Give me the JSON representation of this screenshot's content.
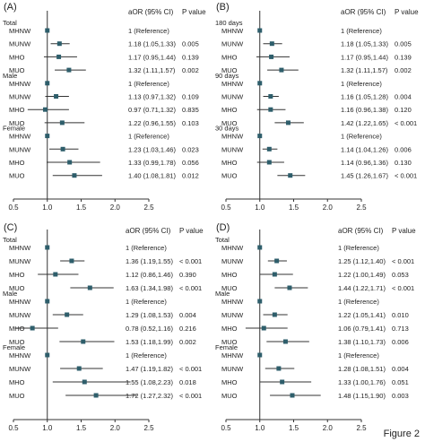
{
  "figure_label": "Figure 2",
  "colors": {
    "marker": "#2e5e6b",
    "axis": "#333333",
    "text": "#222222"
  },
  "chart_data": [
    {
      "type": "forest",
      "panel": "(A)",
      "columns": [
        "aOR (95% CI)",
        "P value"
      ],
      "xlim": [
        0.5,
        2.5
      ],
      "xticks": [
        "0.5",
        "1.0",
        "1.5",
        "2.0",
        "2.5"
      ],
      "reference_line": 1.0,
      "groups": [
        {
          "label": "Total",
          "rows": [
            {
              "label": "MHNW",
              "or": 1,
              "lo": 1,
              "hi": 1,
              "ci_text": "1 (Reference)",
              "p": ""
            },
            {
              "label": "MUNW",
              "or": 1.18,
              "lo": 1.05,
              "hi": 1.33,
              "ci_text": "1.18 (1.05,1.33)",
              "p": "0.005"
            },
            {
              "label": "MHO",
              "or": 1.17,
              "lo": 0.95,
              "hi": 1.44,
              "ci_text": "1.17 (0.95,1.44)",
              "p": "0.139"
            },
            {
              "label": "MUO",
              "or": 1.32,
              "lo": 1.11,
              "hi": 1.57,
              "ci_text": "1.32 (1.11,1.57)",
              "p": "0.002"
            }
          ]
        },
        {
          "label": "Male",
          "rows": [
            {
              "label": "MHNW",
              "or": 1,
              "lo": 1,
              "hi": 1,
              "ci_text": "1 (Reference)",
              "p": ""
            },
            {
              "label": "MUNW",
              "or": 1.13,
              "lo": 0.97,
              "hi": 1.32,
              "ci_text": "1.13 (0.97,1.32)",
              "p": "0.109"
            },
            {
              "label": "MHO",
              "or": 0.97,
              "lo": 0.71,
              "hi": 1.32,
              "ci_text": "0.97 (0.71,1.32)",
              "p": "0.835"
            },
            {
              "label": "MUO",
              "or": 1.22,
              "lo": 0.96,
              "hi": 1.55,
              "ci_text": "1.22 (0.96,1.55)",
              "p": "0.103"
            }
          ]
        },
        {
          "label": "Female",
          "rows": [
            {
              "label": "MHNW",
              "or": 1,
              "lo": 1,
              "hi": 1,
              "ci_text": "1 (Reference)",
              "p": ""
            },
            {
              "label": "MUNW",
              "or": 1.23,
              "lo": 1.03,
              "hi": 1.46,
              "ci_text": "1.23 (1.03,1.46)",
              "p": "0.023"
            },
            {
              "label": "MHO",
              "or": 1.33,
              "lo": 0.99,
              "hi": 1.78,
              "ci_text": "1.33 (0.99,1.78)",
              "p": "0.056"
            },
            {
              "label": "MUO",
              "or": 1.4,
              "lo": 1.08,
              "hi": 1.81,
              "ci_text": "1.40 (1.08,1.81)",
              "p": "0.012"
            }
          ]
        }
      ]
    },
    {
      "type": "forest",
      "panel": "(B)",
      "columns": [
        "aOR (95% CI)",
        "P value"
      ],
      "xlim": [
        0.5,
        2.5
      ],
      "xticks": [
        "0.5",
        "1.0",
        "1.5",
        "2.0",
        "2.5"
      ],
      "reference_line": 1.0,
      "groups": [
        {
          "label": "180 days",
          "rows": [
            {
              "label": "MHNW",
              "or": 1,
              "lo": 1,
              "hi": 1,
              "ci_text": "1 (Reference)",
              "p": ""
            },
            {
              "label": "MUNW",
              "or": 1.18,
              "lo": 1.05,
              "hi": 1.33,
              "ci_text": "1.18 (1.05,1.33)",
              "p": "0.005"
            },
            {
              "label": "MHO",
              "or": 1.17,
              "lo": 0.95,
              "hi": 1.44,
              "ci_text": "1.17 (0.95,1.44)",
              "p": "0.139"
            },
            {
              "label": "MUO",
              "or": 1.32,
              "lo": 1.11,
              "hi": 1.57,
              "ci_text": "1.32 (1.11,1.57)",
              "p": "0.002"
            }
          ]
        },
        {
          "label": "90 days",
          "rows": [
            {
              "label": "MHNW",
              "or": 1,
              "lo": 1,
              "hi": 1,
              "ci_text": "1 (Reference)",
              "p": ""
            },
            {
              "label": "MUNW",
              "or": 1.16,
              "lo": 1.05,
              "hi": 1.28,
              "ci_text": "1.16 (1.05,1.28)",
              "p": "0.004"
            },
            {
              "label": "MHO",
              "or": 1.16,
              "lo": 0.96,
              "hi": 1.38,
              "ci_text": "1.16 (0.96,1.38)",
              "p": "0.120"
            },
            {
              "label": "MUO",
              "or": 1.42,
              "lo": 1.22,
              "hi": 1.65,
              "ci_text": "1.42 (1.22,1.65)",
              "p": "< 0.001"
            }
          ]
        },
        {
          "label": "30 days",
          "rows": [
            {
              "label": "MHNW",
              "or": 1,
              "lo": 1,
              "hi": 1,
              "ci_text": "1 (Reference)",
              "p": ""
            },
            {
              "label": "MUNW",
              "or": 1.14,
              "lo": 1.04,
              "hi": 1.26,
              "ci_text": "1.14 (1.04,1.26)",
              "p": "0.006"
            },
            {
              "label": "MHO",
              "or": 1.14,
              "lo": 0.96,
              "hi": 1.36,
              "ci_text": "1.14 (0.96,1.36)",
              "p": "0.130"
            },
            {
              "label": "MUO",
              "or": 1.45,
              "lo": 1.26,
              "hi": 1.67,
              "ci_text": "1.45 (1.26,1.67)",
              "p": "< 0.001"
            }
          ]
        }
      ]
    },
    {
      "type": "forest",
      "panel": "(C)",
      "columns": [
        "aOR (95% CI)",
        "P value"
      ],
      "xlim": [
        0.5,
        2.5
      ],
      "xticks": [
        "0.5",
        "1.0",
        "1.5",
        "2.0",
        "2.5"
      ],
      "reference_line": 1.0,
      "groups": [
        {
          "label": "Total",
          "rows": [
            {
              "label": "MHNW",
              "or": 1,
              "lo": 1,
              "hi": 1,
              "ci_text": "1 (Reference)",
              "p": ""
            },
            {
              "label": "MUNW",
              "or": 1.36,
              "lo": 1.19,
              "hi": 1.55,
              "ci_text": "1.36 (1.19,1.55)",
              "p": "< 0.001"
            },
            {
              "label": "MHO",
              "or": 1.12,
              "lo": 0.86,
              "hi": 1.46,
              "ci_text": "1.12 (0.86,1.46)",
              "p": "0.390"
            },
            {
              "label": "MUO",
              "or": 1.63,
              "lo": 1.34,
              "hi": 1.98,
              "ci_text": "1.63 (1.34,1.98)",
              "p": "< 0.001"
            }
          ]
        },
        {
          "label": "Male",
          "rows": [
            {
              "label": "MHNW",
              "or": 1,
              "lo": 1,
              "hi": 1,
              "ci_text": "1 (Reference)",
              "p": ""
            },
            {
              "label": "MUNW",
              "or": 1.29,
              "lo": 1.08,
              "hi": 1.53,
              "ci_text": "1.29 (1.08,1.53)",
              "p": "0.004"
            },
            {
              "label": "MHO",
              "or": 0.78,
              "lo": 0.52,
              "hi": 1.16,
              "ci_text": "0.78 (0.52,1.16)",
              "p": "0.216"
            },
            {
              "label": "MUO",
              "or": 1.53,
              "lo": 1.18,
              "hi": 1.99,
              "ci_text": "1.53 (1.18,1.99)",
              "p": "0.002"
            }
          ]
        },
        {
          "label": "Female",
          "rows": [
            {
              "label": "MHNW",
              "or": 1,
              "lo": 1,
              "hi": 1,
              "ci_text": "1 (Reference)",
              "p": ""
            },
            {
              "label": "MUNW",
              "or": 1.47,
              "lo": 1.19,
              "hi": 1.82,
              "ci_text": "1.47 (1.19,1.82)",
              "p": "< 0.001"
            },
            {
              "label": "MHO",
              "or": 1.55,
              "lo": 1.08,
              "hi": 2.23,
              "ci_text": "1.55 (1.08,2.23)",
              "p": "0.018"
            },
            {
              "label": "MUO",
              "or": 1.72,
              "lo": 1.27,
              "hi": 2.32,
              "ci_text": "1.72 (1.27,2.32)",
              "p": "< 0.001"
            }
          ]
        }
      ]
    },
    {
      "type": "forest",
      "panel": "(D)",
      "columns": [
        "aOR (95% CI)",
        "P value"
      ],
      "xlim": [
        0.5,
        2.5
      ],
      "xticks": [
        "0.5",
        "1.0",
        "1.5",
        "2.0",
        "2.5"
      ],
      "reference_line": 1.0,
      "groups": [
        {
          "label": "Total",
          "rows": [
            {
              "label": "MHNW",
              "or": 1,
              "lo": 1,
              "hi": 1,
              "ci_text": "1 (Reference)",
              "p": ""
            },
            {
              "label": "MUNW",
              "or": 1.25,
              "lo": 1.12,
              "hi": 1.4,
              "ci_text": "1.25 (1.12,1.40)",
              "p": "< 0.001"
            },
            {
              "label": "MHO",
              "or": 1.22,
              "lo": 1.0,
              "hi": 1.49,
              "ci_text": "1.22 (1.00,1.49)",
              "p": "0.053"
            },
            {
              "label": "MUO",
              "or": 1.44,
              "lo": 1.22,
              "hi": 1.71,
              "ci_text": "1.44 (1.22,1.71)",
              "p": "< 0.001"
            }
          ]
        },
        {
          "label": "Male",
          "rows": [
            {
              "label": "MHNW",
              "or": 1,
              "lo": 1,
              "hi": 1,
              "ci_text": "1 (Reference)",
              "p": ""
            },
            {
              "label": "MUNW",
              "or": 1.22,
              "lo": 1.05,
              "hi": 1.41,
              "ci_text": "1.22 (1.05,1.41)",
              "p": "0.010"
            },
            {
              "label": "MHO",
              "or": 1.06,
              "lo": 0.79,
              "hi": 1.41,
              "ci_text": "1.06 (0.79,1.41)",
              "p": "0.713"
            },
            {
              "label": "MUO",
              "or": 1.38,
              "lo": 1.1,
              "hi": 1.73,
              "ci_text": "1.38 (1.10,1.73)",
              "p": "0.006"
            }
          ]
        },
        {
          "label": "Female",
          "rows": [
            {
              "label": "MHNW",
              "or": 1,
              "lo": 1,
              "hi": 1,
              "ci_text": "1 (Reference)",
              "p": ""
            },
            {
              "label": "MUNW",
              "or": 1.28,
              "lo": 1.08,
              "hi": 1.51,
              "ci_text": "1.28 (1.08,1.51)",
              "p": "0.004"
            },
            {
              "label": "MHO",
              "or": 1.33,
              "lo": 1.0,
              "hi": 1.76,
              "ci_text": "1.33 (1.00,1.76)",
              "p": "0.051"
            },
            {
              "label": "MUO",
              "or": 1.48,
              "lo": 1.15,
              "hi": 1.9,
              "ci_text": "1.48 (1.15,1.90)",
              "p": "0.003"
            }
          ]
        }
      ]
    }
  ]
}
